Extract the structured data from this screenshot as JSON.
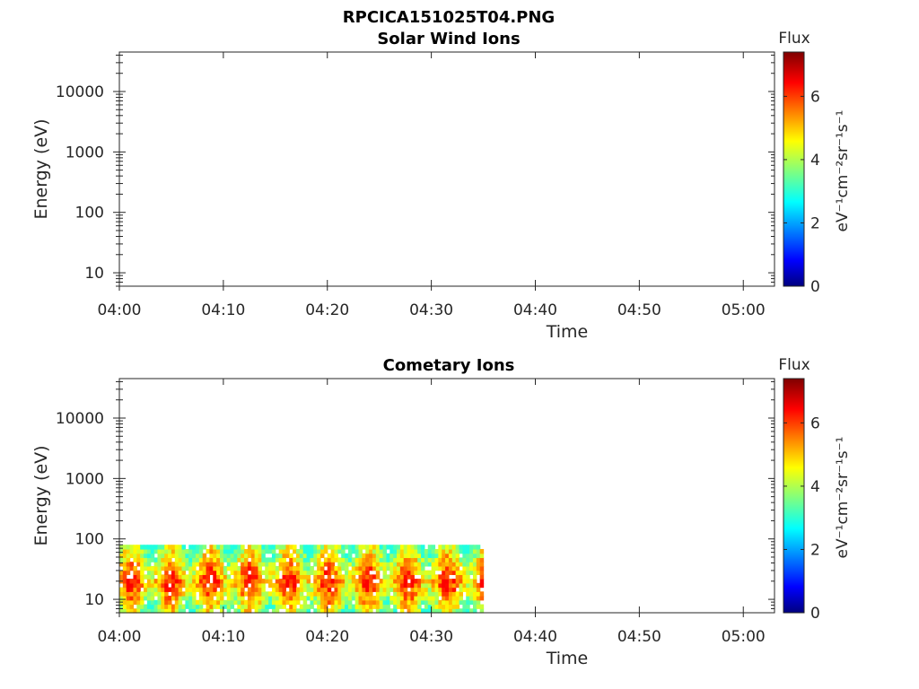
{
  "figure_title": "RPCICA151025T04.PNG",
  "chart_data": [
    {
      "type": "heatmap",
      "title": "Solar Wind Ions",
      "xlabel": "Time",
      "ylabel": "Energy (eV)",
      "y_scale": "log",
      "x_range": [
        "04:00",
        "05:03"
      ],
      "y_range": [
        6,
        45000
      ],
      "x_ticks": [
        "04:00",
        "04:10",
        "04:20",
        "04:30",
        "04:40",
        "04:50",
        "05:00"
      ],
      "y_ticks": [
        "10",
        "100",
        "1000",
        "10000"
      ],
      "colorbar": {
        "title": "Flux",
        "unit_label": "eV⁻¹cm⁻²sr⁻¹s⁻¹",
        "range": [
          0,
          7.4
        ],
        "ticks": [
          "0",
          "2",
          "4",
          "6"
        ],
        "colormap": "jet"
      },
      "data_extent": null
    },
    {
      "type": "heatmap",
      "title": "Cometary Ions",
      "xlabel": "Time",
      "ylabel": "Energy (eV)",
      "y_scale": "log",
      "x_range": [
        "04:00",
        "05:03"
      ],
      "y_range": [
        6,
        45000
      ],
      "x_ticks": [
        "04:00",
        "04:10",
        "04:20",
        "04:30",
        "04:40",
        "04:50",
        "05:00"
      ],
      "y_ticks": [
        "10",
        "100",
        "1000",
        "10000"
      ],
      "colorbar": {
        "title": "Flux",
        "unit_label": "eV⁻¹cm⁻²sr⁻¹s⁻¹",
        "range": [
          0,
          7.4
        ],
        "ticks": [
          "0",
          "2",
          "4",
          "6"
        ],
        "colormap": "jet"
      },
      "data_extent": {
        "time_start": "04:00",
        "time_end": "04:35",
        "energy_min": 6,
        "energy_max": 80,
        "peak_flux_energy": 20,
        "typical_flux_range": [
          3,
          6.5
        ]
      }
    }
  ]
}
